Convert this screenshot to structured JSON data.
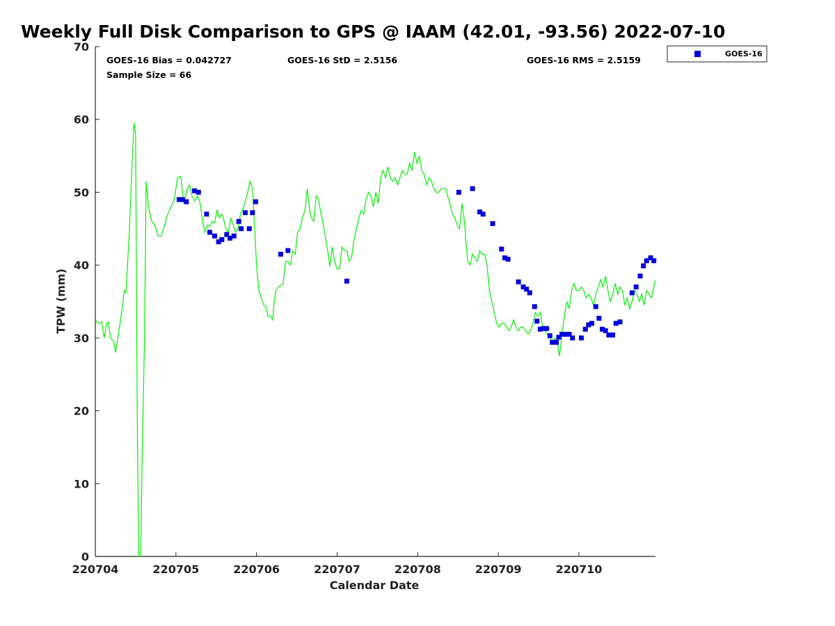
{
  "colors": {
    "gps_line": "#00ee00",
    "goes_marker": "#0000dd",
    "axis": "#222222"
  },
  "chart_data": {
    "type": "scatter",
    "title": "Weekly Full Disk Comparison to GPS @ IAAM (42.01, -93.56) 2022-07-10",
    "xlabel": "Calendar Date",
    "ylabel": "TPW (mm)",
    "ylim": [
      0,
      70
    ],
    "xlim": [
      0,
      6.95
    ],
    "yticks": [
      0,
      10,
      20,
      30,
      40,
      50,
      60,
      70
    ],
    "xtick_labels": [
      "220704",
      "220705",
      "220706",
      "220707",
      "220708",
      "220709",
      "220710"
    ],
    "stats": {
      "bias": "GOES-16 Bias = 0.042727",
      "std": "GOES-16 StD = 2.5156",
      "rms": "GOES-16 RMS = 2.5159",
      "sample": "Sample Size = 66"
    },
    "legend": {
      "placement": "top-right",
      "label": "GOES-16"
    },
    "series": [
      {
        "name": "GPS",
        "kind": "line",
        "points": [
          [
            0.0,
            32.5
          ],
          [
            0.04,
            32.0
          ],
          [
            0.08,
            32.2
          ],
          [
            0.11,
            30.0
          ],
          [
            0.14,
            32.0
          ],
          [
            0.16,
            32.2
          ],
          [
            0.19,
            30.0
          ],
          [
            0.23,
            29.5
          ],
          [
            0.25,
            28.0
          ],
          [
            0.28,
            30.0
          ],
          [
            0.32,
            33.0
          ],
          [
            0.36,
            36.5
          ],
          [
            0.38,
            36.2
          ],
          [
            0.42,
            44.0
          ],
          [
            0.46,
            55.0
          ],
          [
            0.48,
            59.5
          ],
          [
            0.5,
            58.0
          ],
          [
            0.52,
            20.0
          ],
          [
            0.54,
            -2.0
          ],
          [
            0.56,
            -2.0
          ],
          [
            0.58,
            13.0
          ],
          [
            0.61,
            30.0
          ],
          [
            0.63,
            51.5
          ],
          [
            0.66,
            48.0
          ],
          [
            0.7,
            46.0
          ],
          [
            0.74,
            45.5
          ],
          [
            0.78,
            44.0
          ],
          [
            0.82,
            44.0
          ],
          [
            0.86,
            45.5
          ],
          [
            0.9,
            47.0
          ],
          [
            0.94,
            48.0
          ],
          [
            0.98,
            49.0
          ],
          [
            1.02,
            52.0
          ],
          [
            1.06,
            52.2
          ],
          [
            1.08,
            50.0
          ],
          [
            1.1,
            48.5
          ],
          [
            1.14,
            50.5
          ],
          [
            1.17,
            51.0
          ],
          [
            1.2,
            49.5
          ],
          [
            1.23,
            48.8
          ],
          [
            1.27,
            49.5
          ],
          [
            1.3,
            48.5
          ],
          [
            1.33,
            46.0
          ],
          [
            1.36,
            44.5
          ],
          [
            1.39,
            45.5
          ],
          [
            1.42,
            45.3
          ],
          [
            1.45,
            46.0
          ],
          [
            1.48,
            45.8
          ],
          [
            1.51,
            47.5
          ],
          [
            1.54,
            46.5
          ],
          [
            1.57,
            47.0
          ],
          [
            1.6,
            46.0
          ],
          [
            1.62,
            45.0
          ],
          [
            1.65,
            44.5
          ],
          [
            1.68,
            46.5
          ],
          [
            1.71,
            45.5
          ],
          [
            1.74,
            44.5
          ],
          [
            1.77,
            45.0
          ],
          [
            1.8,
            47.0
          ],
          [
            1.84,
            48.0
          ],
          [
            1.88,
            49.5
          ],
          [
            1.92,
            51.5
          ],
          [
            1.95,
            50.5
          ],
          [
            1.98,
            44.5
          ],
          [
            2.0,
            40.0
          ],
          [
            2.03,
            36.5
          ],
          [
            2.06,
            35.5
          ],
          [
            2.09,
            34.5
          ],
          [
            2.12,
            34.2
          ],
          [
            2.14,
            33.0
          ],
          [
            2.17,
            33.0
          ],
          [
            2.2,
            32.5
          ],
          [
            2.22,
            35.0
          ],
          [
            2.24,
            36.5
          ],
          [
            2.27,
            37.0
          ],
          [
            2.3,
            37.2
          ],
          [
            2.33,
            37.5
          ],
          [
            2.36,
            40.5
          ],
          [
            2.39,
            40.5
          ],
          [
            2.42,
            40.0
          ],
          [
            2.45,
            42.0
          ],
          [
            2.48,
            41.5
          ],
          [
            2.51,
            44.5
          ],
          [
            2.54,
            45.0
          ],
          [
            2.57,
            46.5
          ],
          [
            2.6,
            47.5
          ],
          [
            2.63,
            50.5
          ],
          [
            2.66,
            47.5
          ],
          [
            2.68,
            46.5
          ],
          [
            2.71,
            46.0
          ],
          [
            2.74,
            49.5
          ],
          [
            2.77,
            49.0
          ],
          [
            2.8,
            47.0
          ],
          [
            2.83,
            45.5
          ],
          [
            2.86,
            43.5
          ],
          [
            2.89,
            41.5
          ],
          [
            2.91,
            39.8
          ],
          [
            2.94,
            42.5
          ],
          [
            2.97,
            40.5
          ],
          [
            3.0,
            39.5
          ],
          [
            3.03,
            39.5
          ],
          [
            3.06,
            42.5
          ],
          [
            3.09,
            42.0
          ],
          [
            3.12,
            42.0
          ],
          [
            3.15,
            40.5
          ],
          [
            3.18,
            41.0
          ],
          [
            3.21,
            43.5
          ],
          [
            3.24,
            45.0
          ],
          [
            3.27,
            46.5
          ],
          [
            3.3,
            47.5
          ],
          [
            3.33,
            47.0
          ],
          [
            3.36,
            49.0
          ],
          [
            3.39,
            50.0
          ],
          [
            3.42,
            49.5
          ],
          [
            3.45,
            48.0
          ],
          [
            3.48,
            50.0
          ],
          [
            3.51,
            48.5
          ],
          [
            3.54,
            52.0
          ],
          [
            3.57,
            53.0
          ],
          [
            3.6,
            52.0
          ],
          [
            3.63,
            53.5
          ],
          [
            3.66,
            52.0
          ],
          [
            3.69,
            51.5
          ],
          [
            3.72,
            52.0
          ],
          [
            3.75,
            51.0
          ],
          [
            3.78,
            52.0
          ],
          [
            3.81,
            53.0
          ],
          [
            3.84,
            52.5
          ],
          [
            3.87,
            52.5
          ],
          [
            3.9,
            54.0
          ],
          [
            3.93,
            53.0
          ],
          [
            3.96,
            55.5
          ],
          [
            3.99,
            54.0
          ],
          [
            4.02,
            55.0
          ],
          [
            4.05,
            53.0
          ],
          [
            4.08,
            52.5
          ],
          [
            4.11,
            51.0
          ],
          [
            4.14,
            52.0
          ],
          [
            4.17,
            51.5
          ],
          [
            4.2,
            50.5
          ],
          [
            4.23,
            50.0
          ],
          [
            4.26,
            50.0
          ],
          [
            4.29,
            50.5
          ],
          [
            4.32,
            50.5
          ],
          [
            4.35,
            50.5
          ],
          [
            4.37,
            49.5
          ],
          [
            4.4,
            48.5
          ],
          [
            4.43,
            47.0
          ],
          [
            4.46,
            46.5
          ],
          [
            4.49,
            45.5
          ],
          [
            4.52,
            45.0
          ],
          [
            4.55,
            48.5
          ],
          [
            4.58,
            46.0
          ],
          [
            4.6,
            43.0
          ],
          [
            4.62,
            40.5
          ],
          [
            4.65,
            40.0
          ],
          [
            4.68,
            41.5
          ],
          [
            4.71,
            41.0
          ],
          [
            4.74,
            40.5
          ],
          [
            4.77,
            42.0
          ],
          [
            4.8,
            41.5
          ],
          [
            4.83,
            41.5
          ],
          [
            4.86,
            40.0
          ],
          [
            4.89,
            36.5
          ],
          [
            4.92,
            35.0
          ],
          [
            4.95,
            33.5
          ],
          [
            4.98,
            32.0
          ],
          [
            5.01,
            31.5
          ],
          [
            5.04,
            32.0
          ],
          [
            5.07,
            32.0
          ],
          [
            5.1,
            31.5
          ],
          [
            5.13,
            31.0
          ],
          [
            5.16,
            31.5
          ],
          [
            5.19,
            32.5
          ],
          [
            5.22,
            31.5
          ],
          [
            5.25,
            31.0
          ],
          [
            5.28,
            31.5
          ],
          [
            5.31,
            31.5
          ],
          [
            5.34,
            31.0
          ],
          [
            5.37,
            30.5
          ],
          [
            5.4,
            31.0
          ],
          [
            5.43,
            32.0
          ],
          [
            5.46,
            33.5
          ],
          [
            5.49,
            33.0
          ],
          [
            5.52,
            33.5
          ],
          [
            5.55,
            31.5
          ],
          [
            5.58,
            31.0
          ],
          [
            5.61,
            30.5
          ],
          [
            5.64,
            30.0
          ],
          [
            5.67,
            29.5
          ],
          [
            5.7,
            30.0
          ],
          [
            5.73,
            29.5
          ],
          [
            5.76,
            27.5
          ],
          [
            5.79,
            30.5
          ],
          [
            5.82,
            33.0
          ],
          [
            5.85,
            35.0
          ],
          [
            5.88,
            34.0
          ],
          [
            5.91,
            36.5
          ],
          [
            5.94,
            37.5
          ],
          [
            5.97,
            36.5
          ],
          [
            6.0,
            36.5
          ],
          [
            6.03,
            37.0
          ],
          [
            6.06,
            36.5
          ],
          [
            6.09,
            35.5
          ],
          [
            6.12,
            36.0
          ],
          [
            6.15,
            35.5
          ],
          [
            6.18,
            34.5
          ],
          [
            6.21,
            36.0
          ],
          [
            6.24,
            37.0
          ],
          [
            6.27,
            38.0
          ],
          [
            6.3,
            37.0
          ],
          [
            6.33,
            38.5
          ],
          [
            6.36,
            36.5
          ],
          [
            6.39,
            35.0
          ],
          [
            6.42,
            36.0
          ],
          [
            6.45,
            37.5
          ],
          [
            6.48,
            36.0
          ],
          [
            6.51,
            37.0
          ],
          [
            6.54,
            36.5
          ],
          [
            6.57,
            34.5
          ],
          [
            6.6,
            35.5
          ],
          [
            6.63,
            34.0
          ],
          [
            6.66,
            35.0
          ],
          [
            6.69,
            36.5
          ],
          [
            6.72,
            36.0
          ],
          [
            6.75,
            35.0
          ],
          [
            6.78,
            36.0
          ],
          [
            6.81,
            34.5
          ],
          [
            6.84,
            36.5
          ],
          [
            6.87,
            36.0
          ],
          [
            6.9,
            35.5
          ],
          [
            6.93,
            37.0
          ],
          [
            6.95,
            38.0
          ]
        ]
      },
      {
        "name": "GOES-16",
        "kind": "markers",
        "points": [
          [
            1.04,
            49.0
          ],
          [
            1.08,
            49.0
          ],
          [
            1.13,
            48.7
          ],
          [
            1.23,
            50.2
          ],
          [
            1.28,
            50.0
          ],
          [
            1.38,
            47.0
          ],
          [
            1.42,
            44.5
          ],
          [
            1.48,
            44.0
          ],
          [
            1.53,
            43.2
          ],
          [
            1.57,
            43.5
          ],
          [
            1.63,
            44.2
          ],
          [
            1.67,
            43.7
          ],
          [
            1.72,
            44.0
          ],
          [
            1.78,
            46.0
          ],
          [
            1.81,
            45.0
          ],
          [
            1.86,
            47.2
          ],
          [
            1.91,
            45.0
          ],
          [
            1.95,
            47.2
          ],
          [
            1.99,
            48.7
          ],
          [
            2.3,
            41.5
          ],
          [
            2.39,
            42.0
          ],
          [
            3.12,
            37.8
          ],
          [
            4.51,
            50.0
          ],
          [
            4.68,
            50.5
          ],
          [
            4.77,
            47.3
          ],
          [
            4.81,
            47.0
          ],
          [
            4.93,
            45.7
          ],
          [
            5.04,
            42.2
          ],
          [
            5.08,
            41.0
          ],
          [
            5.12,
            40.8
          ],
          [
            5.25,
            37.7
          ],
          [
            5.31,
            37.0
          ],
          [
            5.35,
            36.7
          ],
          [
            5.39,
            36.2
          ],
          [
            5.45,
            34.3
          ],
          [
            5.48,
            32.3
          ],
          [
            5.52,
            31.2
          ],
          [
            5.56,
            31.3
          ],
          [
            5.6,
            31.3
          ],
          [
            5.64,
            30.3
          ],
          [
            5.67,
            29.4
          ],
          [
            5.72,
            29.4
          ],
          [
            5.75,
            30.1
          ],
          [
            5.79,
            30.5
          ],
          [
            5.84,
            30.5
          ],
          [
            5.88,
            30.5
          ],
          [
            5.92,
            30.0
          ],
          [
            6.03,
            30.0
          ],
          [
            6.08,
            31.2
          ],
          [
            6.12,
            31.8
          ],
          [
            6.16,
            32.0
          ],
          [
            6.21,
            34.3
          ],
          [
            6.25,
            32.7
          ],
          [
            6.29,
            31.2
          ],
          [
            6.33,
            31.0
          ],
          [
            6.37,
            30.4
          ],
          [
            6.42,
            30.4
          ],
          [
            6.46,
            32.0
          ],
          [
            6.51,
            32.2
          ],
          [
            6.66,
            36.2
          ],
          [
            6.71,
            37.0
          ],
          [
            6.76,
            38.5
          ],
          [
            6.8,
            39.9
          ],
          [
            6.84,
            40.6
          ],
          [
            6.89,
            41.0
          ],
          [
            6.93,
            40.6
          ]
        ]
      }
    ]
  }
}
